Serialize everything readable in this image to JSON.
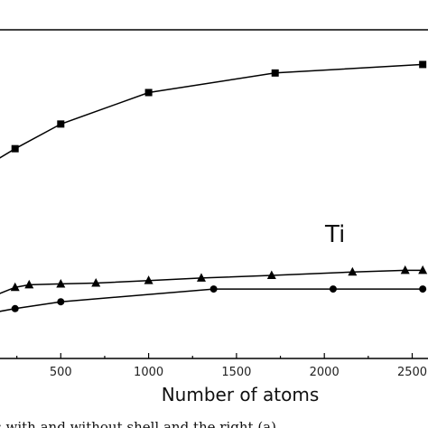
{
  "chart_data": {
    "type": "line",
    "xlabel": "Number of atoms",
    "ylabel": "",
    "xlim": [
      0,
      2560
    ],
    "x_ticks": [
      500,
      1000,
      1500,
      2000,
      2500
    ],
    "x_tick_labels": [
      "500",
      "1000",
      "1500",
      "2000",
      "2500"
    ],
    "grid": false,
    "series": [
      {
        "marker": "square",
        "x": [
          0,
          240,
          500,
          1000,
          1720,
          2560
        ],
        "y": [
          -15,
          15,
          44,
          81,
          104,
          114
        ]
      },
      {
        "name": "Ti",
        "marker": "triangle",
        "x": [
          0,
          240,
          320,
          500,
          700,
          1000,
          1300,
          1700,
          2160,
          2460,
          2560
        ],
        "y": [
          -168,
          -148,
          -145,
          -144,
          -143,
          -140,
          -137,
          -134,
          -130,
          -128,
          -128
        ]
      },
      {
        "marker": "circle",
        "x": [
          0,
          240,
          500,
          1370,
          2050,
          2560
        ],
        "y": [
          -182,
          -173,
          -165,
          -150,
          -150,
          -150
        ]
      }
    ]
  },
  "caption": "res with and without shell and the right (a)"
}
